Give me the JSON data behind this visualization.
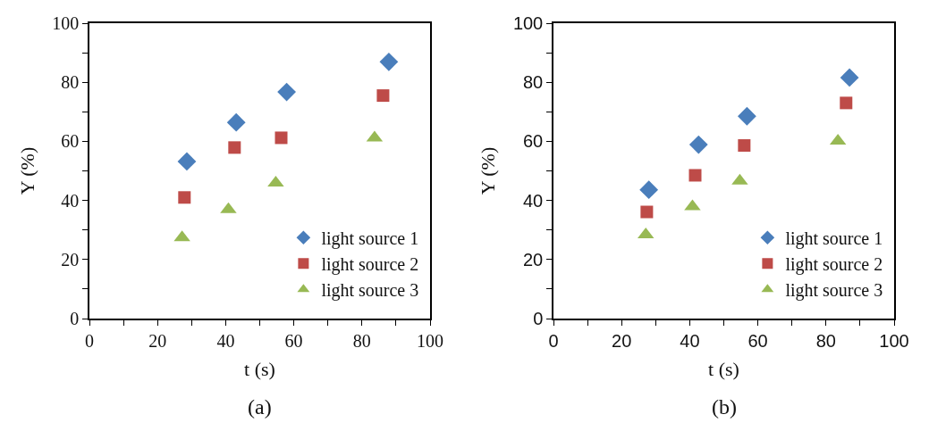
{
  "chart_data": [
    {
      "type": "scatter",
      "xlabel": "t (s)",
      "ylabel": "Y (%)",
      "annotations": [
        "(a)"
      ],
      "xlim": [
        0,
        100
      ],
      "ylim": [
        0,
        100
      ],
      "xticks": [
        0,
        {
          "value": 10,
          "label": null
        },
        20,
        {
          "value": 30,
          "label": null
        },
        40,
        {
          "value": 50,
          "label": null
        },
        60,
        {
          "value": 70,
          "label": null
        },
        80,
        {
          "value": 90,
          "label": null
        },
        100
      ],
      "yticks": [
        0,
        {
          "value": 10,
          "label": null
        },
        20,
        {
          "value": 30,
          "label": null
        },
        40,
        {
          "value": 50,
          "label": null
        },
        60,
        {
          "value": 70,
          "label": null
        },
        80,
        {
          "value": 90,
          "label": null
        },
        100
      ],
      "grid": false,
      "legend": "bottom right",
      "series": [
        {
          "name": "light source 1",
          "color": "#4a7ebb",
          "marker": "diamond",
          "x": [
            28.6,
            43.1,
            57.9,
            87.9
          ],
          "values": [
            53.2,
            66.4,
            76.7,
            86.9
          ]
        },
        {
          "name": "light source 2",
          "color": "#be4b48",
          "marker": "square",
          "x": [
            27.9,
            42.6,
            56.3,
            86.2
          ],
          "values": [
            41.0,
            57.9,
            61.2,
            75.5
          ]
        },
        {
          "name": "light source 3",
          "color": "#98b954",
          "marker": "triangle",
          "x": [
            27.2,
            40.8,
            54.7,
            83.7
          ],
          "values": [
            27.4,
            36.9,
            45.9,
            61.2
          ]
        }
      ]
    },
    {
      "type": "scatter",
      "xlabel": "t (s)",
      "ylabel": "Y (%)",
      "annotations": [
        "(b)"
      ],
      "xlim": [
        0,
        100
      ],
      "ylim": [
        0,
        100
      ],
      "xticks": [
        0,
        {
          "value": 10,
          "label": null
        },
        20,
        {
          "value": 30,
          "label": null
        },
        40,
        {
          "value": 50,
          "label": null
        },
        60,
        {
          "value": 70,
          "label": null
        },
        80,
        {
          "value": 90,
          "label": null
        },
        100
      ],
      "yticks": [
        0,
        {
          "value": 10,
          "label": null
        },
        20,
        {
          "value": 30,
          "label": null
        },
        40,
        {
          "value": 50,
          "label": null
        },
        60,
        {
          "value": 70,
          "label": null
        },
        80,
        {
          "value": 90,
          "label": null
        },
        100
      ],
      "grid": false,
      "legend": "bottom right",
      "series": [
        {
          "name": "light source 1",
          "color": "#4a7ebb",
          "marker": "diamond",
          "x": [
            28.0,
            42.6,
            56.8,
            86.9
          ],
          "values": [
            43.6,
            58.9,
            68.5,
            81.6
          ]
        },
        {
          "name": "light source 2",
          "color": "#be4b48",
          "marker": "square",
          "x": [
            27.4,
            41.6,
            56.0,
            85.9
          ],
          "values": [
            36.1,
            48.5,
            58.6,
            73.0
          ]
        },
        {
          "name": "light source 3",
          "color": "#98b954",
          "marker": "triangle",
          "x": [
            27.1,
            40.8,
            54.7,
            83.5
          ],
          "values": [
            28.4,
            37.9,
            46.6,
            60.1
          ]
        }
      ]
    }
  ]
}
